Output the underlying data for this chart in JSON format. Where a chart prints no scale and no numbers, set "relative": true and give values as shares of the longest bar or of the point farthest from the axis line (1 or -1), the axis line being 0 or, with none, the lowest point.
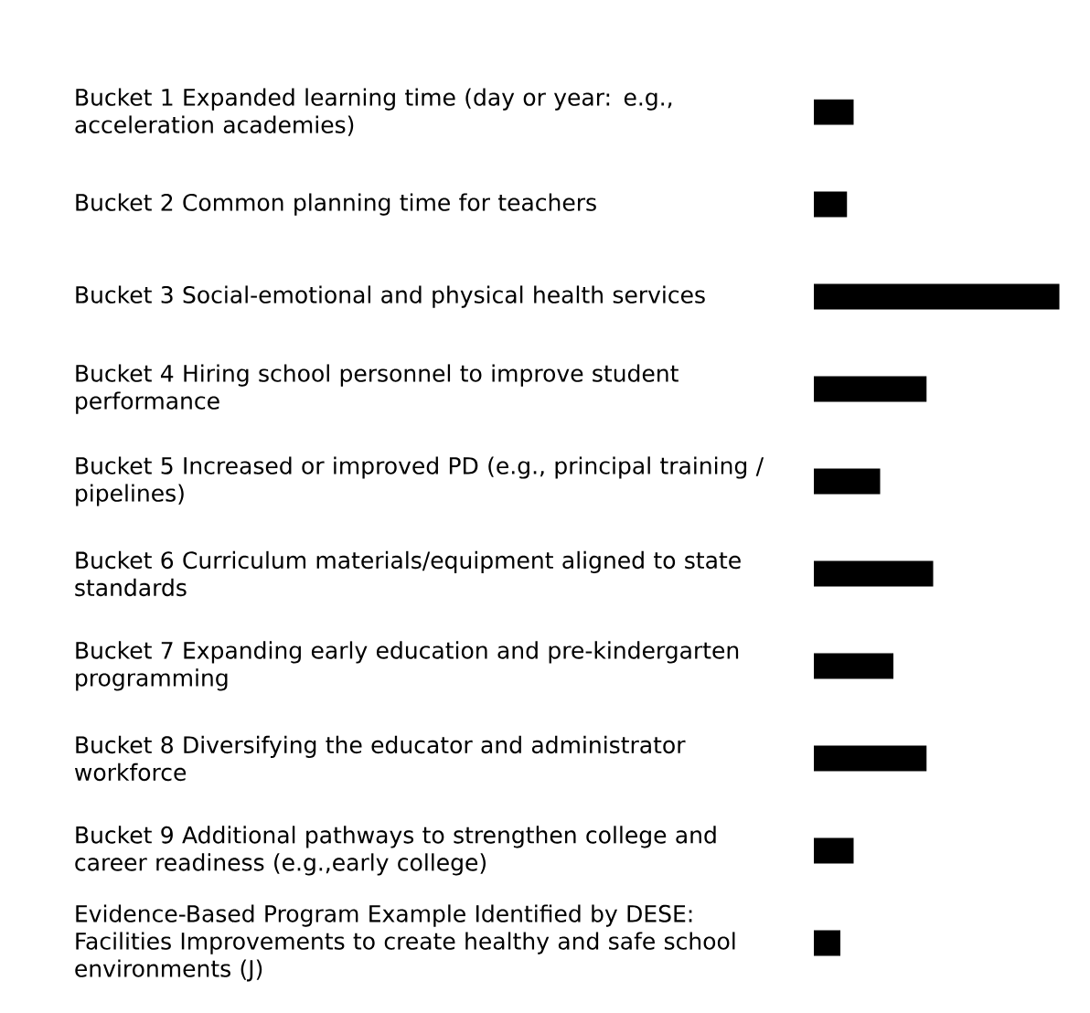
{
  "chart_data": {
    "type": "bar",
    "orientation": "horizontal",
    "relative": true,
    "color": "#000000",
    "categories": [
      "Bucket 1 Expanded learning time (day or year: e.g., acceleration academies)",
      "Bucket 2 Common planning time for teachers",
      "Bucket 3 Social-emotional and physical health services",
      "Bucket 4 Hiring school personnel to improve student performance",
      "Bucket 5 Increased or improved PD (e.g., principal training / pipelines)",
      "Bucket 6 Curriculum materials/equipment aligned to state standards",
      "Bucket 7 Expanding early education and pre-kindergarten programming",
      "Bucket 8 Diversifying the educator and administrator workforce",
      "Bucket 9 Additional pathways to strengthen college and career readiness (e.g.,early college)",
      "Evidence-Based Program Example Identified by DESE: Facilities Improvements to create healthy and safe school environments (J)"
    ],
    "values": [
      0.162,
      0.135,
      1,
      0.459,
      0.27,
      0.486,
      0.324,
      0.459,
      0.162,
      0.108
    ]
  }
}
